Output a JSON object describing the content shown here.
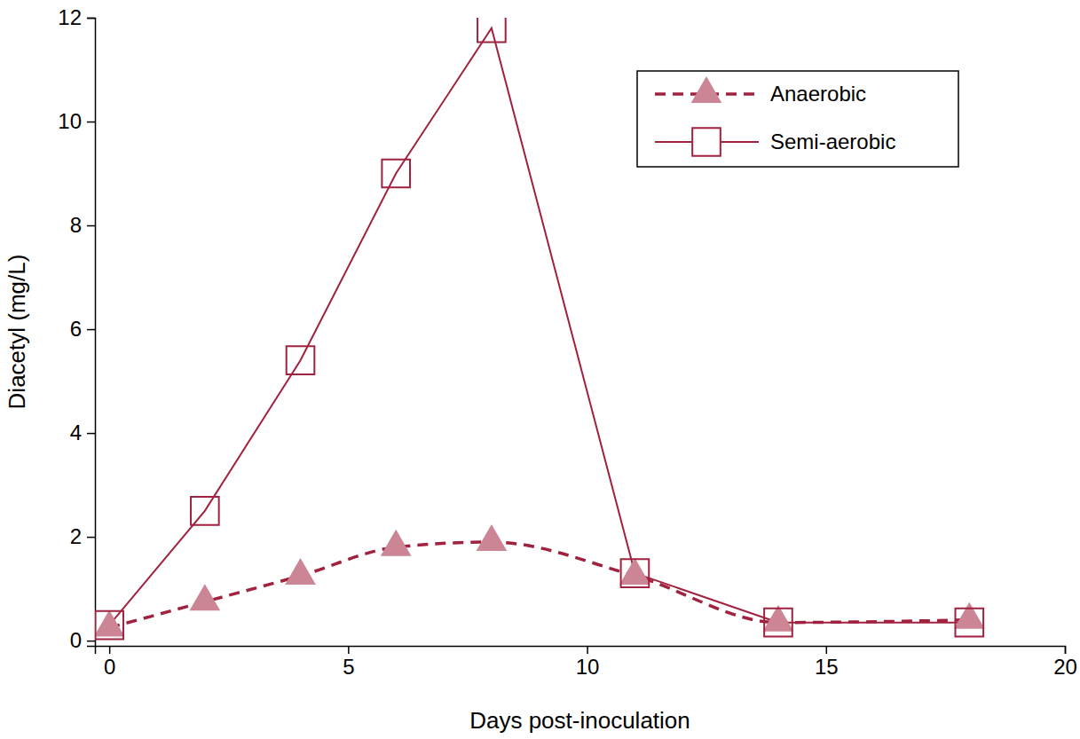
{
  "chart_data": {
    "type": "line",
    "x_label": "Days post-inoculation",
    "y_label": "Diacetyl (mg/L)",
    "x": [
      0,
      2,
      4,
      6,
      8,
      11,
      14,
      18
    ],
    "series": [
      {
        "name": "Anaerobic",
        "type": "spline",
        "color": "#a0223e",
        "marker": "triangle",
        "line_style": "dashed",
        "values": [
          0.25,
          0.75,
          1.25,
          1.8,
          1.9,
          1.25,
          0.35,
          0.4
        ]
      },
      {
        "name": "Semi-aerobic",
        "type": "line",
        "color": "#a0223e",
        "marker": "square",
        "line_style": "solid",
        "values": [
          0.3,
          2.5,
          5.4,
          9.0,
          11.8,
          1.3,
          0.35,
          0.35
        ]
      }
    ],
    "xlim": [
      -0.3,
      20
    ],
    "xticks": [
      0,
      5,
      10,
      15,
      20
    ],
    "ylim": [
      -0.1,
      12
    ],
    "yticks": [
      0,
      2,
      4,
      6,
      8,
      10,
      12
    ],
    "grid": false,
    "legend": "upper right"
  }
}
